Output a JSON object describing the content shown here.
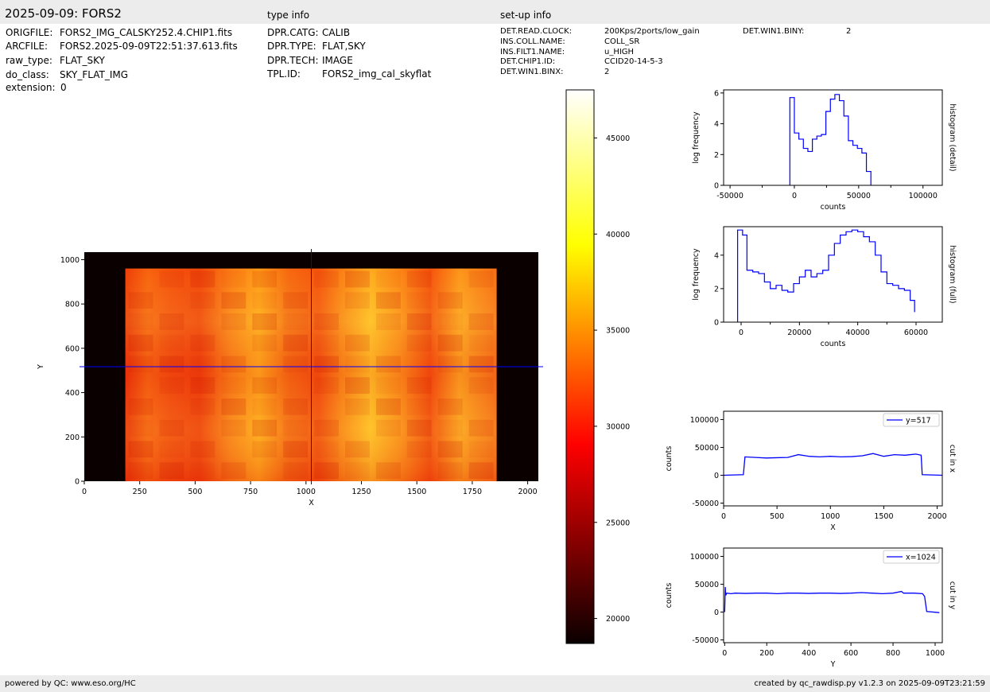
{
  "header": {
    "title": "2025-09-09: FORS2",
    "type_info_label": "type info",
    "setup_info_label": "set-up info"
  },
  "file_info": [
    {
      "key": "ORIGFILE:",
      "value": "FORS2_IMG_CALSKY252.4.CHIP1.fits"
    },
    {
      "key": "ARCFILE:",
      "value": "FORS2.2025-09-09T22:51:37.613.fits"
    },
    {
      "key": "raw_type:",
      "value": "FLAT_SKY"
    },
    {
      "key": "do_class:",
      "value": "SKY_FLAT_IMG"
    },
    {
      "key": "extension:",
      "value": "0"
    }
  ],
  "type_info": [
    {
      "key": "DPR.CATG:",
      "value": "CALIB"
    },
    {
      "key": "DPR.TYPE:",
      "value": "FLAT,SKY"
    },
    {
      "key": "DPR.TECH:",
      "value": "IMAGE"
    },
    {
      "key": "TPL.ID:",
      "value": "FORS2_img_cal_skyflat"
    }
  ],
  "setup_info": [
    {
      "key": "DET.READ.CLOCK:",
      "value": "200Kps/2ports/low_gain"
    },
    {
      "key": "INS.COLL.NAME:",
      "value": "COLL_SR"
    },
    {
      "key": "INS.FILT1.NAME:",
      "value": "u_HIGH"
    },
    {
      "key": "DET.CHIP1.ID:",
      "value": "CCID20-14-5-3"
    },
    {
      "key": "DET.WIN1.BINX:",
      "value": "2"
    }
  ],
  "setup_info_extra": {
    "key": "DET.WIN1.BINY:",
    "value": "2"
  },
  "footer": {
    "left": "powered by QC: www.eso.org/HC",
    "right": "created by qc_rawdisp.py v1.2.3 on 2025-09-09T23:21:59"
  },
  "colors": {
    "line": "#0000ff",
    "panel_bg": "#ececec",
    "image_bg": "#0a0000"
  },
  "chart_data": [
    {
      "type": "heatmap",
      "name": "image",
      "xlabel": "X",
      "ylabel": "Y",
      "xlim": [
        0,
        2048
      ],
      "ylim": [
        0,
        1034
      ],
      "xticks": [
        0,
        250,
        500,
        750,
        1000,
        1250,
        1500,
        1750,
        2000
      ],
      "yticks": [
        0,
        200,
        400,
        600,
        800,
        1000
      ],
      "data_region": {
        "x": [
          185,
          1860
        ],
        "y": [
          0,
          960
        ]
      },
      "crosshair": {
        "x": 1024,
        "y": 517
      },
      "colormap": "hot"
    },
    {
      "type": "colorbar",
      "name": "colorbar",
      "range": [
        18700,
        47500
      ],
      "ticks": [
        20000,
        25000,
        30000,
        35000,
        40000,
        45000
      ]
    },
    {
      "type": "line",
      "name": "histogram-detail",
      "xlabel": "counts",
      "ylabel": "log frequency",
      "side_label": "histogram (detail)",
      "xlim": [
        -55000,
        115000
      ],
      "ylim": [
        0,
        6.2
      ],
      "xticks": [
        -50000,
        0,
        50000,
        100000
      ],
      "yticks": [
        0,
        2,
        4,
        6
      ],
      "x": [
        -3500,
        -3500,
        0,
        3500,
        7000,
        10500,
        14000,
        17500,
        21000,
        24500,
        28000,
        31500,
        35000,
        38500,
        42000,
        45500,
        49000,
        52500,
        56000,
        59500
      ],
      "y": [
        0,
        5.7,
        3.4,
        3.0,
        2.4,
        2.2,
        3.0,
        3.2,
        3.3,
        4.8,
        5.6,
        5.9,
        5.5,
        4.5,
        2.9,
        2.6,
        2.4,
        2.1,
        0.9,
        0
      ]
    },
    {
      "type": "line",
      "name": "histogram-full",
      "xlabel": "counts",
      "ylabel": "log frequency",
      "side_label": "histogram (full)",
      "xlim": [
        -6000,
        69000
      ],
      "ylim": [
        0,
        5.7
      ],
      "xticks": [
        0,
        20000,
        40000,
        60000
      ],
      "yticks": [
        0,
        2,
        4
      ],
      "x": [
        -1200,
        -1200,
        500,
        2000,
        4000,
        6000,
        8000,
        10000,
        12000,
        14000,
        16000,
        18000,
        20000,
        22000,
        24000,
        26000,
        28000,
        30000,
        32000,
        34000,
        36000,
        38000,
        40000,
        42000,
        44000,
        46000,
        48000,
        50000,
        52000,
        54000,
        56000,
        58000,
        59500
      ],
      "y": [
        0,
        5.5,
        5.2,
        3.1,
        3.0,
        2.9,
        2.4,
        2.0,
        2.2,
        1.9,
        1.8,
        2.3,
        2.7,
        3.1,
        2.7,
        2.9,
        3.1,
        4.0,
        4.7,
        5.2,
        5.4,
        5.5,
        5.4,
        5.1,
        4.8,
        4.0,
        3.0,
        2.3,
        2.2,
        2.0,
        1.9,
        1.3,
        0.6
      ]
    },
    {
      "type": "line",
      "name": "cut-in-x",
      "xlabel": "X",
      "ylabel": "counts",
      "side_label": "cut in x",
      "legend": "y=517",
      "legend_position": "top-right",
      "xlim": [
        0,
        2048
      ],
      "ylim": [
        -55000,
        115000
      ],
      "xticks": [
        0,
        500,
        1000,
        1500,
        2000
      ],
      "yticks": [
        -50000,
        0,
        50000,
        100000
      ],
      "x": [
        0,
        185,
        200,
        300,
        400,
        500,
        600,
        700,
        800,
        900,
        1000,
        1100,
        1200,
        1300,
        1400,
        1500,
        1600,
        1700,
        1800,
        1850,
        1860,
        2048
      ],
      "y": [
        0,
        1000,
        33000,
        32000,
        31000,
        31500,
        32000,
        37000,
        34000,
        33000,
        34000,
        33000,
        33500,
        35000,
        39000,
        34000,
        37000,
        36000,
        38000,
        36000,
        1000,
        0
      ]
    },
    {
      "type": "line",
      "name": "cut-in-y",
      "xlabel": "Y",
      "ylabel": "counts",
      "side_label": "cut in y",
      "legend": "x=1024",
      "legend_position": "top-right",
      "xlim": [
        -5,
        1034
      ],
      "ylim": [
        -55000,
        115000
      ],
      "xticks": [
        0,
        200,
        400,
        600,
        800,
        1000
      ],
      "yticks": [
        -50000,
        0,
        50000,
        100000
      ],
      "x": [
        0,
        3,
        5,
        10,
        30,
        50,
        100,
        150,
        200,
        250,
        300,
        350,
        400,
        450,
        500,
        550,
        600,
        650,
        700,
        750,
        800,
        840,
        850,
        900,
        940,
        950,
        960,
        1020
      ],
      "y": [
        0,
        45000,
        30000,
        34000,
        33000,
        34000,
        33500,
        34000,
        34000,
        33000,
        34000,
        34000,
        33500,
        34000,
        34000,
        33500,
        34000,
        35000,
        34000,
        33000,
        34000,
        37000,
        34000,
        34000,
        33000,
        28000,
        1000,
        -1000
      ]
    }
  ]
}
